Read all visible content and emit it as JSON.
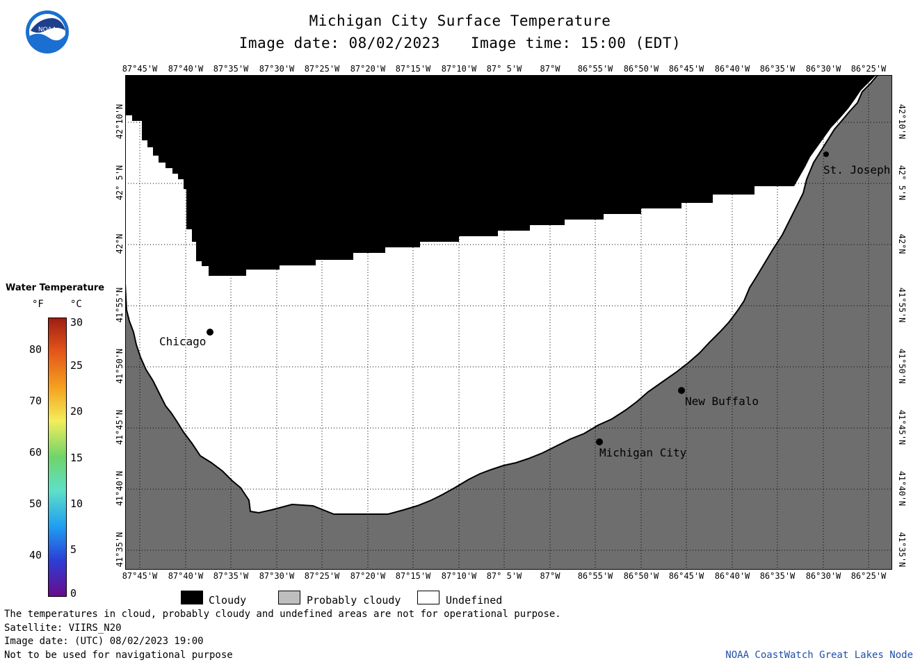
{
  "title": "Michigan City Surface Temperature",
  "image_date": "Image date: 08/02/2023",
  "image_time": "Image time: 15:00 (EDT)",
  "logo_text": "NOAA",
  "lon_labels": [
    "87°45'W",
    "87°40'W",
    "87°35'W",
    "87°30'W",
    "87°25'W",
    "87°20'W",
    "87°15'W",
    "87°10'W",
    "87° 5'W",
    "87°W",
    "86°55'W",
    "86°50'W",
    "86°45'W",
    "86°40'W",
    "86°35'W",
    "86°30'W",
    "86°25'W"
  ],
  "lat_labels": [
    "42°10'N",
    "42° 5'N",
    "42°N",
    "41°55'N",
    "41°50'N",
    "41°45'N",
    "41°40'N",
    "41°35'N"
  ],
  "places": {
    "chicago": "Chicago",
    "new_buffalo": "New Buffalo",
    "michigan_city": "Michigan City",
    "st_joseph": "St. Joseph"
  },
  "legend": {
    "title": "Water Temperature",
    "unit_f": "°F",
    "unit_c": "°C",
    "ticks_f": [
      "80",
      "70",
      "60",
      "50",
      "40"
    ],
    "ticks_c": [
      "30",
      "25",
      "20",
      "15",
      "10",
      "5",
      "0"
    ],
    "colors": [
      "#6a0a8c",
      "#2b3fd6",
      "#1f9ef0",
      "#5ee0c8",
      "#6fd46a",
      "#f2ee5a",
      "#f5a11f",
      "#e4561a",
      "#9e1d12"
    ]
  },
  "key": {
    "cloudy": "Cloudy",
    "probably_cloudy": "Probably cloudy",
    "undefined": "Undefined",
    "cloudy_color": "#000000",
    "probably_cloudy_color": "#bebebe",
    "undefined_color": "#ffffff"
  },
  "footer": {
    "line1": "The temperatures in cloud, probably cloudy and undefined areas are not for operational purpose.",
    "line2": "Satellite: VIIRS_N20",
    "line3": "Image date: (UTC) 08/02/2023  19:00",
    "line4": "Not to be used for navigational purpose",
    "credit": "NOAA CoastWatch Great Lakes Node"
  },
  "map_colors": {
    "land": "#6e6e6e",
    "cloud": "#000000",
    "undefined": "#ffffff"
  }
}
